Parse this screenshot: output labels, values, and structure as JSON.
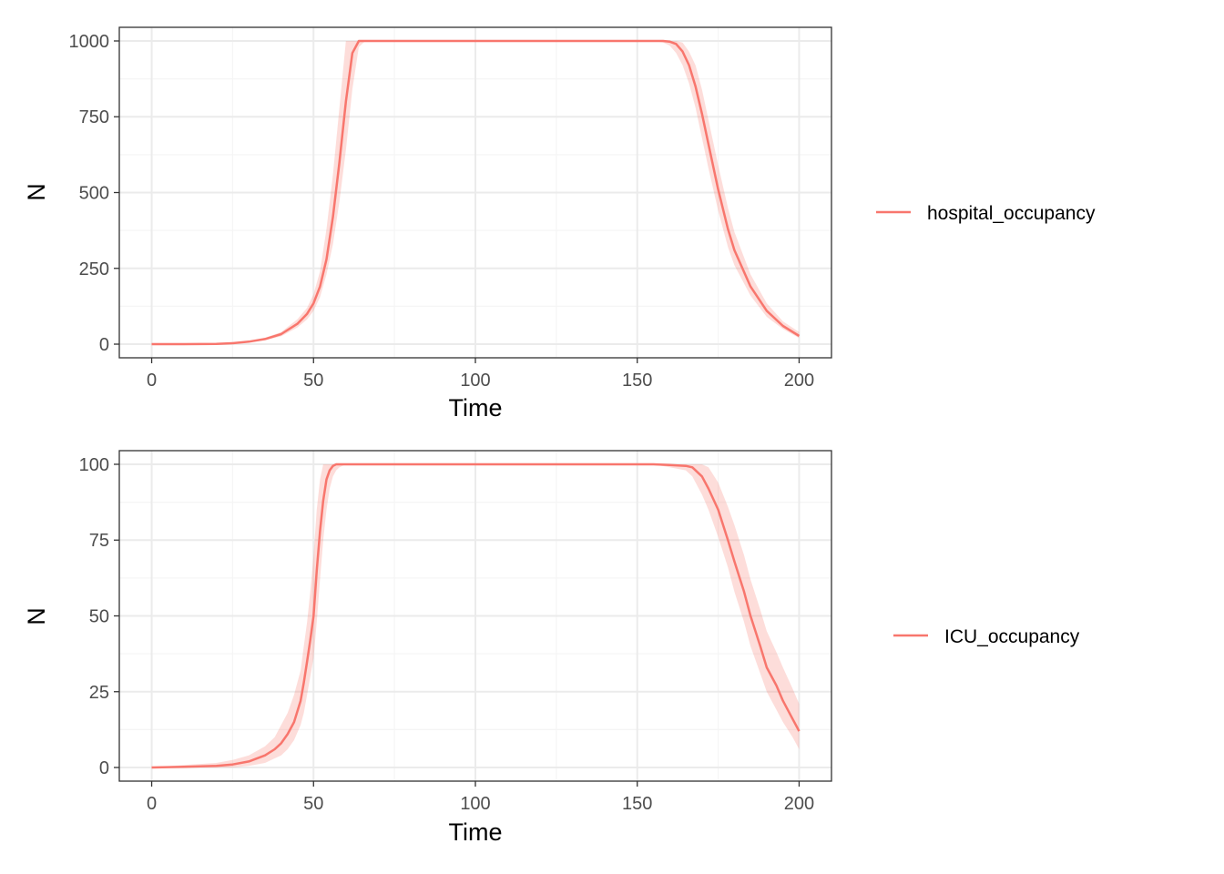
{
  "colors": {
    "series": "#F8766D",
    "ribbon": "#F8766D",
    "grid_major": "#ebebeb",
    "grid_minor": "#f5f5f5",
    "panel_border": "#333333",
    "tick_text": "#4d4d4d"
  },
  "chart_data": [
    {
      "type": "line",
      "xlabel": "Time",
      "ylabel": "N",
      "xlim": [
        -10,
        210
      ],
      "ylim": [
        -45,
        1045
      ],
      "x_ticks": [
        0,
        50,
        100,
        150,
        200
      ],
      "x_tick_labels": [
        "0",
        "50",
        "100",
        "150",
        "200"
      ],
      "y_ticks": [
        0,
        250,
        500,
        750,
        1000
      ],
      "y_tick_labels": [
        "0",
        "250",
        "500",
        "750",
        "1000"
      ],
      "grid": true,
      "legend_position": "right",
      "series": [
        {
          "name": "hospital_occupancy",
          "x": [
            0,
            10,
            20,
            25,
            30,
            35,
            40,
            45,
            48,
            50,
            52,
            54,
            56,
            58,
            60,
            62,
            64,
            66,
            80,
            100,
            120,
            140,
            155,
            158,
            160,
            162,
            164,
            166,
            168,
            170,
            172,
            175,
            178,
            180,
            185,
            190,
            195,
            200
          ],
          "y": [
            0,
            0,
            1,
            3,
            8,
            17,
            33,
            67,
            100,
            135,
            190,
            280,
            420,
            600,
            800,
            960,
            1000,
            1000,
            1000,
            1000,
            1000,
            1000,
            1000,
            1000,
            998,
            990,
            965,
            920,
            850,
            760,
            660,
            510,
            380,
            310,
            190,
            110,
            60,
            27
          ],
          "lower": [
            0,
            0,
            0,
            2,
            6,
            13,
            26,
            55,
            82,
            110,
            155,
            230,
            330,
            470,
            640,
            840,
            980,
            1000,
            1000,
            1000,
            1000,
            1000,
            1000,
            995,
            985,
            960,
            920,
            860,
            780,
            680,
            580,
            440,
            320,
            260,
            160,
            90,
            50,
            20
          ],
          "upper": [
            0,
            1,
            2,
            5,
            10,
            21,
            40,
            82,
            120,
            165,
            240,
            380,
            560,
            780,
            1000,
            1000,
            1000,
            1000,
            1000,
            1000,
            1000,
            1000,
            1000,
            1000,
            1000,
            1000,
            995,
            965,
            920,
            840,
            740,
            590,
            450,
            370,
            230,
            135,
            75,
            40
          ]
        }
      ]
    },
    {
      "type": "line",
      "xlabel": "Time",
      "ylabel": "N",
      "xlim": [
        -10,
        210
      ],
      "ylim": [
        -4.5,
        104.5
      ],
      "x_ticks": [
        0,
        50,
        100,
        150,
        200
      ],
      "x_tick_labels": [
        "0",
        "50",
        "100",
        "150",
        "200"
      ],
      "y_ticks": [
        0,
        25,
        50,
        75,
        100
      ],
      "y_tick_labels": [
        "0",
        "25",
        "50",
        "75",
        "100"
      ],
      "grid": true,
      "legend_position": "right",
      "series": [
        {
          "name": "ICU_occupancy",
          "x": [
            0,
            10,
            20,
            25,
            30,
            35,
            38,
            40,
            42,
            44,
            46,
            47,
            48,
            49,
            50,
            51,
            52,
            53,
            54,
            55,
            56,
            57,
            58,
            60,
            80,
            100,
            120,
            140,
            155,
            160,
            165,
            167,
            170,
            172,
            175,
            178,
            180,
            183,
            185,
            188,
            190,
            193,
            195,
            198,
            200
          ],
          "y": [
            0,
            0.2,
            0.5,
            1,
            2,
            4,
            6,
            8,
            11,
            15,
            22,
            28,
            35,
            42,
            50,
            65,
            78,
            88,
            95,
            98,
            99.5,
            100,
            100,
            100,
            100,
            100,
            100,
            100,
            100,
            99.8,
            99.5,
            99,
            96,
            92,
            85,
            75,
            68,
            58,
            50,
            40,
            33,
            27,
            22,
            16,
            12
          ]
        }
      ],
      "ribbons": [
        {
          "x": [
            0,
            10,
            20,
            25,
            30,
            35,
            38,
            40,
            42,
            44,
            46,
            47,
            48,
            49,
            50,
            51,
            52,
            53,
            54,
            55,
            56,
            57,
            58,
            60,
            80,
            100,
            120,
            140,
            155,
            160,
            165,
            167,
            170,
            172,
            175,
            178,
            180,
            183,
            185,
            188,
            190,
            193,
            195,
            198,
            200
          ],
          "lower": [
            0,
            0,
            0,
            0,
            0.5,
            1.5,
            3,
            4,
            6,
            9,
            14,
            18,
            24,
            30,
            36,
            48,
            62,
            75,
            85,
            92,
            96,
            98,
            99,
            100,
            100,
            100,
            100,
            100,
            100,
            99,
            98,
            96,
            90,
            85,
            76,
            66,
            58,
            48,
            40,
            31,
            25,
            19,
            15,
            10,
            6
          ],
          "upper": [
            0,
            0.8,
            1.5,
            2.5,
            4,
            7,
            10,
            14,
            18,
            24,
            32,
            40,
            48,
            58,
            70,
            85,
            95,
            100,
            100,
            100,
            100,
            100,
            100,
            100,
            100,
            100,
            100,
            100,
            100,
            100,
            100,
            100,
            100,
            99,
            94,
            86,
            80,
            70,
            62,
            52,
            45,
            38,
            33,
            26,
            21
          ]
        }
      ]
    }
  ]
}
